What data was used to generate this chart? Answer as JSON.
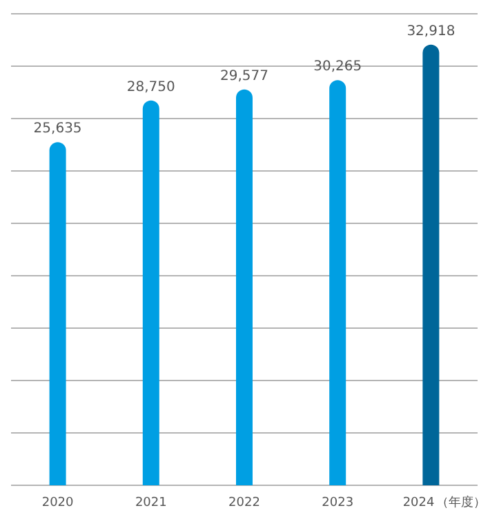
{
  "chart_data": {
    "type": "bar",
    "xlabel": "（年度）",
    "categories": [
      "2020",
      "2021",
      "2022",
      "2023",
      "2024"
    ],
    "values": [
      25635,
      28750,
      29577,
      30265,
      32918
    ],
    "value_labels": [
      "25,635",
      "28,750",
      "29,577",
      "30,265",
      "32,918"
    ],
    "colors": [
      "#009fe3",
      "#009fe3",
      "#009fe3",
      "#009fe3",
      "#006699"
    ],
    "grid": "y",
    "tick_labels": "x",
    "relative": false
  }
}
